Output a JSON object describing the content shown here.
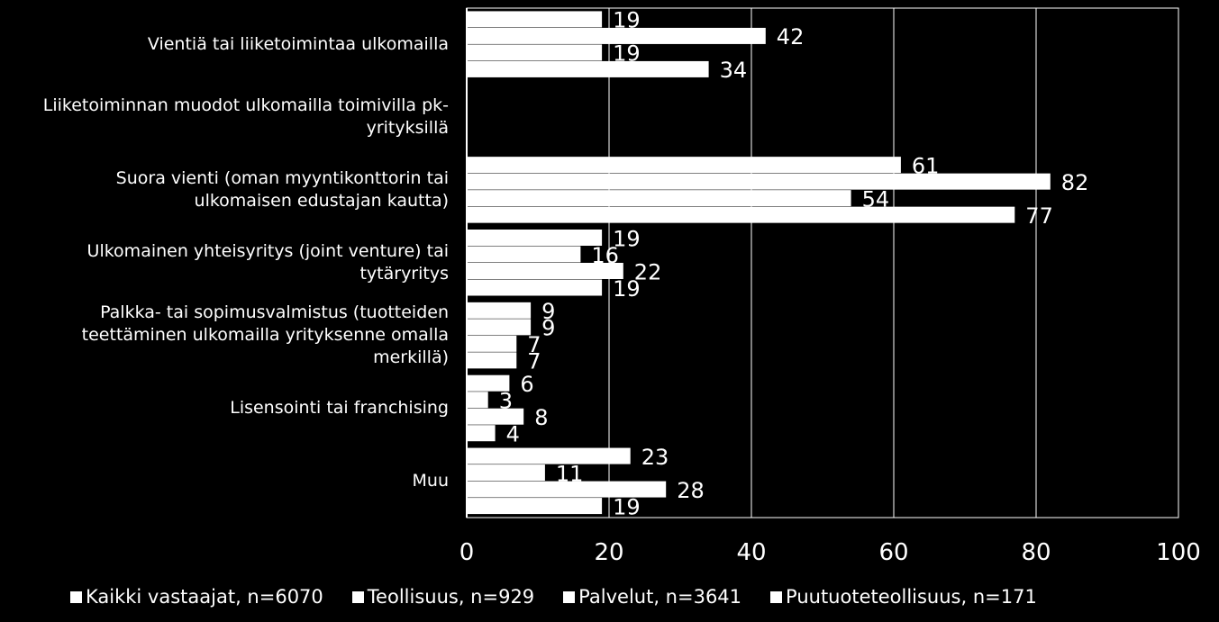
{
  "chart_data": {
    "type": "bar",
    "orientation": "horizontal",
    "title": "",
    "xlabel": "",
    "ylabel": "",
    "xlim": [
      0,
      100
    ],
    "x_ticks": [
      "0",
      "20",
      "40",
      "60",
      "80",
      "100"
    ],
    "grid": true,
    "legend_position": "bottom",
    "categories": [
      "Vientiä tai liiketoimintaa ulkomailla",
      "Liiketoiminnan muodot ulkomailla toimivilla pk-yrityksillä",
      "Suora vienti (oman myyntikonttorin tai ulkomaisen edustajan kautta)",
      "Ulkomainen yhteisyritys (joint venture) tai tytäryritys",
      "Palkka- tai sopimusvalmistus (tuotteiden teettäminen ulkomailla yrityksenne omalla merkillä)",
      "Lisensointi tai franchising",
      "Muu"
    ],
    "category_lines": [
      [
        "Vientiä tai liiketoimintaa ulkomailla"
      ],
      [
        "Liiketoiminnan muodot ulkomailla toimivilla pk-",
        "yrityksillä"
      ],
      [
        "Suora vienti (oman myyntikonttorin tai",
        "ulkomaisen edustajan kautta)"
      ],
      [
        "Ulkomainen yhteisyritys (joint venture) tai",
        "tytäryritys"
      ],
      [
        "Palkka- tai sopimusvalmistus (tuotteiden",
        "teettäminen ulkomailla yrityksenne omalla",
        "merkillä)"
      ],
      [
        "Lisensointi tai franchising"
      ],
      [
        "Muu"
      ]
    ],
    "series": [
      {
        "name": "Kaikki vastaajat, n=6070",
        "values": [
          19,
          null,
          61,
          19,
          9,
          6,
          23
        ]
      },
      {
        "name": "Teollisuus, n=929",
        "values": [
          42,
          null,
          82,
          16,
          9,
          3,
          11
        ]
      },
      {
        "name": "Palvelut, n=3641",
        "values": [
          19,
          null,
          54,
          22,
          7,
          8,
          28
        ]
      },
      {
        "name": "Puutuoteteollisuus, n=171",
        "values": [
          34,
          null,
          77,
          19,
          7,
          4,
          19
        ]
      }
    ],
    "colors": {
      "background": "#000000",
      "bar": "#ffffff",
      "text": "#ffffff",
      "grid": "#ffffff"
    }
  }
}
